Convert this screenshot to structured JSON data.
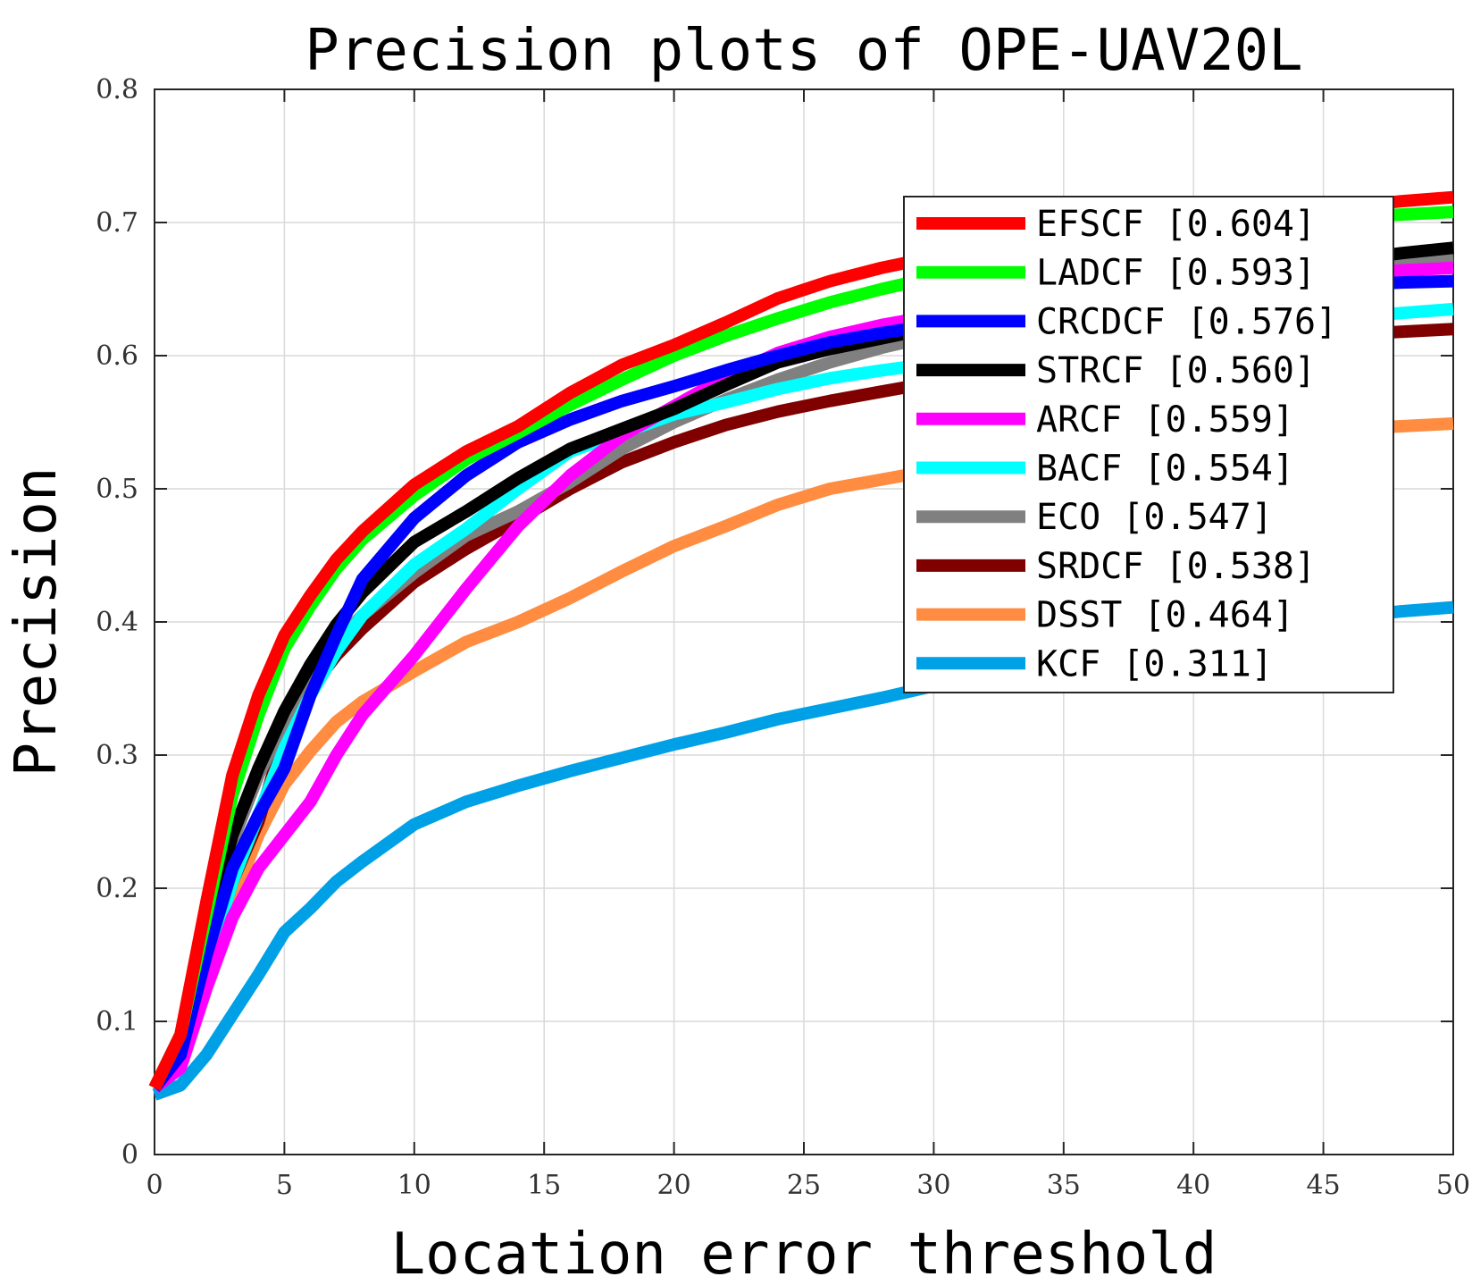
{
  "chart_data": {
    "type": "line",
    "title": "Precision plots of OPE-UAV20L",
    "xlabel": "Location error threshold",
    "ylabel": "Precision",
    "xlim": [
      0,
      50
    ],
    "ylim": [
      0,
      0.8
    ],
    "xticks": [
      0,
      5,
      10,
      15,
      20,
      25,
      30,
      35,
      40,
      45,
      50
    ],
    "yticks": [
      0,
      0.1,
      0.2,
      0.3,
      0.4,
      0.5,
      0.6,
      0.7,
      0.8
    ],
    "xtick_labels": [
      "0",
      "5",
      "10",
      "15",
      "20",
      "25",
      "30",
      "35",
      "40",
      "45",
      "50"
    ],
    "ytick_labels": [
      "0",
      "0.1",
      "0.2",
      "0.3",
      "0.4",
      "0.5",
      "0.6",
      "0.7",
      "0.8"
    ],
    "grid": true,
    "legend_position": "top-right",
    "x": [
      0,
      1,
      2,
      3,
      4,
      5,
      6,
      7,
      8,
      10,
      12,
      14,
      16,
      18,
      20,
      22,
      24,
      26,
      28,
      30,
      32,
      34,
      36,
      38,
      40,
      42,
      44,
      46,
      48,
      50
    ],
    "series": [
      {
        "name": "EFSCF [0.604]",
        "color": "#ff0000",
        "values": [
          0.05,
          0.09,
          0.19,
          0.285,
          0.345,
          0.39,
          0.42,
          0.447,
          0.468,
          0.503,
          0.528,
          0.547,
          0.572,
          0.593,
          0.608,
          0.625,
          0.643,
          0.656,
          0.666,
          0.674,
          0.681,
          0.687,
          0.692,
          0.697,
          0.701,
          0.705,
          0.709,
          0.712,
          0.716,
          0.719
        ]
      },
      {
        "name": "LADCF [0.593]",
        "color": "#00ff00",
        "values": [
          0.05,
          0.09,
          0.18,
          0.27,
          0.33,
          0.38,
          0.412,
          0.44,
          0.462,
          0.495,
          0.522,
          0.542,
          0.563,
          0.582,
          0.6,
          0.615,
          0.628,
          0.64,
          0.65,
          0.659,
          0.667,
          0.675,
          0.682,
          0.688,
          0.693,
          0.697,
          0.701,
          0.704,
          0.706,
          0.708
        ]
      },
      {
        "name": "CRCDCF [0.576]",
        "color": "#0000ff",
        "values": [
          0.05,
          0.075,
          0.15,
          0.215,
          0.255,
          0.29,
          0.345,
          0.39,
          0.432,
          0.478,
          0.51,
          0.535,
          0.552,
          0.566,
          0.577,
          0.589,
          0.6,
          0.61,
          0.617,
          0.623,
          0.629,
          0.634,
          0.638,
          0.642,
          0.645,
          0.648,
          0.651,
          0.653,
          0.655,
          0.656
        ]
      },
      {
        "name": "STRCF [0.560]",
        "color": "#000000",
        "values": [
          0.05,
          0.08,
          0.165,
          0.24,
          0.29,
          0.333,
          0.368,
          0.398,
          0.422,
          0.46,
          0.483,
          0.508,
          0.53,
          0.545,
          0.56,
          0.578,
          0.595,
          0.605,
          0.613,
          0.621,
          0.63,
          0.637,
          0.644,
          0.65,
          0.656,
          0.662,
          0.667,
          0.672,
          0.677,
          0.681
        ]
      },
      {
        "name": "ARCF [0.559]",
        "color": "#ff00ff",
        "values": [
          0.05,
          0.065,
          0.125,
          0.178,
          0.215,
          0.24,
          0.265,
          0.3,
          0.33,
          0.375,
          0.425,
          0.472,
          0.51,
          0.54,
          0.562,
          0.584,
          0.602,
          0.614,
          0.623,
          0.63,
          0.635,
          0.64,
          0.645,
          0.649,
          0.653,
          0.656,
          0.659,
          0.662,
          0.664,
          0.666
        ]
      },
      {
        "name": "BACF [0.554]",
        "color": "#00ffff",
        "values": [
          0.05,
          0.075,
          0.14,
          0.205,
          0.255,
          0.305,
          0.345,
          0.378,
          0.405,
          0.443,
          0.47,
          0.5,
          0.528,
          0.542,
          0.556,
          0.565,
          0.575,
          0.583,
          0.589,
          0.594,
          0.6,
          0.605,
          0.61,
          0.615,
          0.619,
          0.623,
          0.626,
          0.629,
          0.632,
          0.635
        ]
      },
      {
        "name": "ECO [0.547]",
        "color": "#808080",
        "values": [
          0.05,
          0.09,
          0.165,
          0.235,
          0.285,
          0.325,
          0.36,
          0.385,
          0.405,
          0.437,
          0.465,
          0.483,
          0.505,
          0.53,
          0.55,
          0.567,
          0.582,
          0.595,
          0.606,
          0.615,
          0.625,
          0.633,
          0.64,
          0.647,
          0.653,
          0.659,
          0.664,
          0.668,
          0.672,
          0.674
        ]
      },
      {
        "name": "SRDCF [0.538]",
        "color": "#800000",
        "values": [
          0.05,
          0.07,
          0.14,
          0.205,
          0.25,
          0.315,
          0.35,
          0.375,
          0.395,
          0.43,
          0.455,
          0.477,
          0.5,
          0.52,
          0.535,
          0.548,
          0.558,
          0.566,
          0.573,
          0.58,
          0.586,
          0.592,
          0.597,
          0.602,
          0.606,
          0.61,
          0.613,
          0.616,
          0.618,
          0.62
        ]
      },
      {
        "name": "DSST [0.464]",
        "color": "#ff8c40",
        "values": [
          0.05,
          0.07,
          0.13,
          0.19,
          0.24,
          0.278,
          0.303,
          0.325,
          0.34,
          0.363,
          0.385,
          0.4,
          0.418,
          0.438,
          0.457,
          0.472,
          0.488,
          0.5,
          0.507,
          0.514,
          0.52,
          0.525,
          0.53,
          0.533,
          0.536,
          0.539,
          0.542,
          0.545,
          0.547,
          0.549
        ]
      },
      {
        "name": "KCF [0.311]",
        "color": "#00a0e6",
        "values": [
          0.045,
          0.052,
          0.075,
          0.105,
          0.135,
          0.167,
          0.185,
          0.205,
          0.22,
          0.248,
          0.265,
          0.277,
          0.288,
          0.298,
          0.308,
          0.317,
          0.327,
          0.335,
          0.343,
          0.352,
          0.36,
          0.368,
          0.376,
          0.383,
          0.39,
          0.395,
          0.4,
          0.404,
          0.408,
          0.411
        ]
      }
    ]
  }
}
